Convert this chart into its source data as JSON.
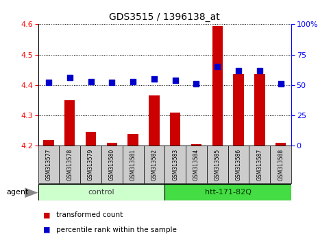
{
  "title": "GDS3515 / 1396138_at",
  "samples": [
    "GSM313577",
    "GSM313578",
    "GSM313579",
    "GSM313580",
    "GSM313581",
    "GSM313582",
    "GSM313583",
    "GSM313584",
    "GSM313585",
    "GSM313586",
    "GSM313587",
    "GSM313588"
  ],
  "transformed_count": [
    4.22,
    4.35,
    4.245,
    4.21,
    4.24,
    4.365,
    4.31,
    4.205,
    4.595,
    4.435,
    4.435,
    4.21
  ],
  "percentile_rank": [
    52,
    56,
    53,
    52,
    53,
    55,
    54,
    51,
    65,
    62,
    62,
    51
  ],
  "ylim_left": [
    4.2,
    4.6
  ],
  "ylim_right": [
    0,
    100
  ],
  "yticks_left": [
    4.2,
    4.3,
    4.4,
    4.5,
    4.6
  ],
  "yticks_right": [
    0,
    25,
    50,
    75,
    100
  ],
  "bar_color": "#cc0000",
  "dot_color": "#0000cc",
  "control_color": "#ccffcc",
  "htt_color": "#44dd44",
  "legend_bar_label": "transformed count",
  "legend_dot_label": "percentile rank within the sample",
  "agent_label": "agent",
  "bar_width": 0.5,
  "dot_size": 30,
  "tick_area_color": "#cccccc"
}
